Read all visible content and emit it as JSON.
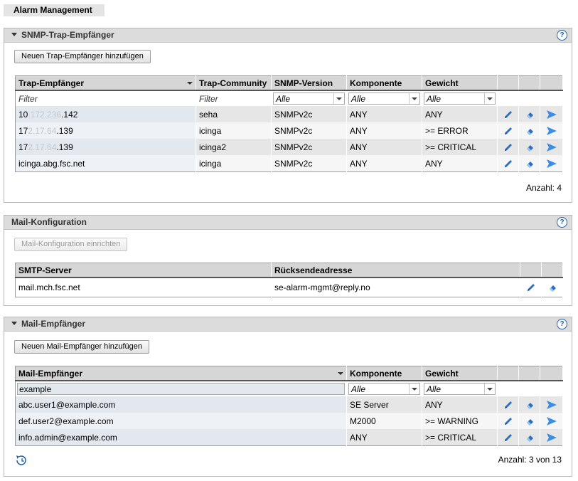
{
  "page_tab": "Alarm Management",
  "snmp": {
    "title": "SNMP-Trap-Empfänger",
    "add_button": "Neuen Trap-Empfänger hinzufügen",
    "columns": [
      "Trap-Empfänger",
      "Trap-Community",
      "SNMP-Version",
      "Komponente",
      "Gewicht"
    ],
    "filter_placeholder": "Filter",
    "filter_select": "Alle",
    "rows": [
      {
        "host_a": "10",
        "host_blur": ".172.236",
        "host_b": ".142",
        "community": "seha",
        "version": "SNMPv2c",
        "component": "ANY",
        "weight": "ANY"
      },
      {
        "host_a": "17",
        "host_blur": "2.17.64",
        "host_b": ".139",
        "community": "icinga",
        "version": "SNMPv2c",
        "component": "ANY",
        "weight": ">= ERROR"
      },
      {
        "host_a": "17",
        "host_blur": "2.17.64",
        "host_b": ".139",
        "community": "icinga2",
        "version": "SNMPv2c",
        "component": "ANY",
        "weight": ">= CRITICAL"
      },
      {
        "host_a": "icinga.abg.fsc.net",
        "host_blur": "",
        "host_b": "",
        "community": "icinga",
        "version": "SNMPv2c",
        "component": "ANY",
        "weight": "ANY"
      }
    ],
    "count": "Anzahl: 4"
  },
  "mail_config": {
    "title": "Mail-Konfiguration",
    "setup_button": "Mail-Konfiguration einrichten",
    "columns": [
      "SMTP-Server",
      "Rücksendeadresse"
    ],
    "rows": [
      {
        "server": "mail.mch.fsc.net",
        "return_address": "se-alarm-mgmt@reply.no"
      }
    ]
  },
  "mail_recipients": {
    "title": "Mail-Empfänger",
    "add_button": "Neuen Mail-Empfänger hinzufügen",
    "columns": [
      "Mail-Empfänger",
      "Komponente",
      "Gewicht"
    ],
    "filter_value": "example",
    "filter_select": "Alle",
    "rows": [
      {
        "email": "abc.user1@example.com",
        "component": "SE Server",
        "weight": "ANY"
      },
      {
        "email": "def.user2@example.com",
        "component": "M2000",
        "weight": ">= WARNING"
      },
      {
        "email": "info.admin@example.com",
        "component": "ANY",
        "weight": ">= CRITICAL"
      }
    ],
    "count": "Anzahl: 3 von 13"
  },
  "icons": {
    "edit": "pencil-icon",
    "delete": "eraser-icon",
    "test": "send-arrow-icon",
    "refresh": "refresh-clock-icon",
    "help": "help-icon"
  },
  "colors": {
    "accent": "#1f5fa8",
    "header_bg": "#dcdcdc"
  }
}
